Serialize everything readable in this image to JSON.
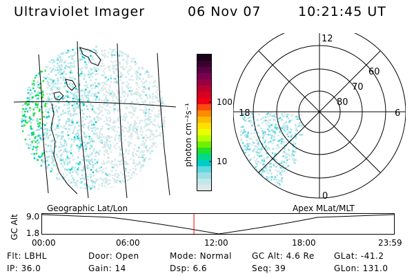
{
  "header": {
    "instrument": "Ultraviolet Imager",
    "date": "06 Nov 07",
    "time": "10:21:45 UT"
  },
  "colorbar": {
    "ticks": [
      "100",
      "10"
    ],
    "unit_label": "photon cm⁻²s⁻¹",
    "colors": [
      "#1a0018",
      "#3a0030",
      "#5a0045",
      "#7a0050",
      "#9a0040",
      "#bb0030",
      "#d80020",
      "#f00018",
      "#ff4a10",
      "#ff8c00",
      "#ffbb00",
      "#ffe000",
      "#e8ff00",
      "#b8ff00",
      "#70f000",
      "#20e030",
      "#00d88a",
      "#00ccc8",
      "#60d8e0",
      "#9ce0e4",
      "#c2e8ea",
      "#dce8e8"
    ]
  },
  "polar": {
    "mlt_labels": {
      "top": "12",
      "left": "18",
      "right": "6",
      "bottom": "0"
    },
    "mlat_labels": [
      "60",
      "70",
      "80"
    ]
  },
  "map_labels": {
    "left": "Geographic Lat/Lon",
    "right": "Apex MLat/MLT"
  },
  "altitude_plot": {
    "axis_label": "GC Alt",
    "y_ticks": [
      "9.0",
      "1.8"
    ],
    "x_ticks": [
      "00:00",
      "06:00",
      "12:00",
      "18:00",
      "23:59"
    ],
    "current_time_marker_hours": 10.36
  },
  "info_rows": [
    [
      {
        "label": "Flt:",
        "value": "LBHL"
      },
      {
        "label": "Door:",
        "value": "Open"
      },
      {
        "label": "Mode:",
        "value": "Normal"
      },
      {
        "label": "GC Alt:",
        "value": "4.6 Re"
      },
      {
        "label": "GLat:",
        "value": "-41.2"
      }
    ],
    [
      {
        "label": "IP:",
        "value": "36.0"
      },
      {
        "label": "Gain:",
        "value": "14"
      },
      {
        "label": "Dsp:",
        "value": "6.6"
      },
      {
        "label": "Seq:",
        "value": "39"
      },
      {
        "label": "GLon:",
        "value": "131.0"
      }
    ]
  ]
}
